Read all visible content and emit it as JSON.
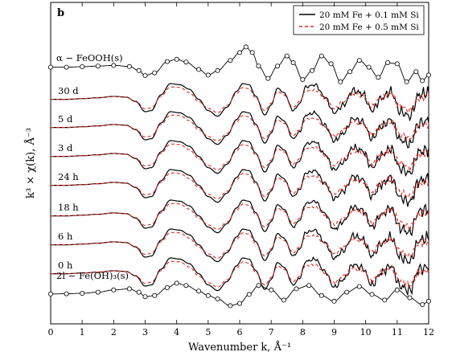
{
  "chart_data": {
    "type": "line",
    "panel_label": "b",
    "xlabel": "Wavenumber k, Å⁻¹",
    "ylabel": "k³ × χ(k), Å⁻³",
    "xlim": [
      0,
      12
    ],
    "xticks": [
      0,
      1,
      2,
      3,
      4,
      5,
      6,
      7,
      8,
      9,
      10,
      11,
      12
    ],
    "grid": false,
    "legend": {
      "position": "top-right",
      "entries": [
        {
          "label": "20 mM Fe + 0.1 mM Si",
          "color": "#000000",
          "dash": "solid"
        },
        {
          "label": "20 mM Fe + 0.5 mM Si",
          "color": "#e8231c",
          "dash": "dashed"
        }
      ]
    },
    "reference_spectra": [
      {
        "label": "α − FeOOH(s)",
        "x": [
          0,
          0.5,
          1,
          1.5,
          2,
          2.5,
          2.8,
          3.0,
          3.3,
          3.7,
          4.0,
          4.3,
          4.7,
          5.0,
          5.3,
          5.7,
          6.0,
          6.2,
          6.4,
          6.6,
          6.9,
          7.2,
          7.5,
          7.7,
          8.0,
          8.3,
          8.6,
          8.9,
          9.2,
          9.5,
          9.8,
          10.1,
          10.4,
          10.7,
          11.0,
          11.3,
          11.6,
          11.8,
          12.0
        ],
        "y": [
          0.05,
          0.05,
          0.07,
          0.1,
          0.13,
          0.08,
          -0.1,
          -0.32,
          -0.2,
          0.3,
          0.4,
          0.28,
          -0.05,
          -0.3,
          -0.1,
          0.35,
          0.7,
          0.95,
          0.7,
          0.1,
          -0.45,
          0.1,
          0.55,
          0.25,
          -0.5,
          -0.1,
          0.55,
          0.2,
          -0.6,
          -0.15,
          0.35,
          0.05,
          -0.4,
          0.25,
          0.2,
          -0.6,
          -0.15,
          -0.55,
          -0.3
        ]
      },
      {
        "label": "2l − Fe(OH)₃(s)",
        "x": [
          0,
          0.5,
          1,
          1.5,
          2,
          2.5,
          2.8,
          3.0,
          3.3,
          3.7,
          4.0,
          4.3,
          4.7,
          5.0,
          5.3,
          5.7,
          6.0,
          6.3,
          6.6,
          7.0,
          7.4,
          7.8,
          8.2,
          8.6,
          9.0,
          9.4,
          9.8,
          10.2,
          10.6,
          11.0,
          11.4,
          11.8,
          12.0
        ],
        "y": [
          -0.03,
          -0.02,
          0,
          0.05,
          0.15,
          0.2,
          0.05,
          -0.15,
          -0.1,
          0.25,
          0.45,
          0.35,
          0.1,
          -0.1,
          -0.25,
          -0.55,
          -0.45,
          -0.05,
          0.35,
          0.15,
          -0.3,
          0.2,
          0.35,
          -0.1,
          -0.35,
          0.05,
          0.3,
          -0.05,
          -0.3,
          0.15,
          -0.2,
          -0.5,
          -0.35
        ]
      }
    ],
    "sample_series": [
      {
        "label": "30 d",
        "amplitude": 1.0,
        "seed": 3
      },
      {
        "label": "5 d",
        "amplitude": 1.0,
        "seed": 5
      },
      {
        "label": "3 d",
        "amplitude": 1.0,
        "seed": 7
      },
      {
        "label": "24 h",
        "amplitude": 1.0,
        "seed": 11
      },
      {
        "label": "18 h",
        "amplitude": 1.0,
        "seed": 13
      },
      {
        "label": "6 h",
        "amplitude": 1.0,
        "seed": 17
      },
      {
        "label": "0 h",
        "amplitude": 1.0,
        "seed": 19
      }
    ],
    "sample_template": {
      "x": [
        0,
        0.5,
        1,
        1.5,
        2,
        2.4,
        2.7,
        3.0,
        3.2,
        3.5,
        3.8,
        4.1,
        4.4,
        4.7,
        5.0,
        5.3,
        5.6,
        5.9,
        6.1,
        6.3,
        6.5,
        6.8,
        7.0,
        7.2,
        7.4,
        7.7,
        7.9,
        8.1,
        8.4,
        8.7,
        9.0,
        9.3,
        9.6,
        9.9,
        10.2,
        10.5,
        10.8,
        11.1,
        11.4,
        11.7,
        12.0
      ],
      "y_0.1Si": [
        0.05,
        0.05,
        0.08,
        0.12,
        0.18,
        0.15,
        -0.05,
        -0.5,
        -0.45,
        0.25,
        0.75,
        0.7,
        0.5,
        0.05,
        -0.45,
        -0.7,
        -0.3,
        0.4,
        0.75,
        0.7,
        0.2,
        -0.65,
        -0.2,
        0.55,
        0.35,
        -0.45,
        -0.15,
        0.6,
        0.7,
        0.15,
        -0.55,
        -0.2,
        0.45,
        0.3,
        -0.45,
        0.1,
        0.4,
        -0.5,
        -0.7,
        0.25,
        0.35
      ],
      "y_0.5Si": [
        0.05,
        0.05,
        0.08,
        0.12,
        0.18,
        0.14,
        -0.03,
        -0.38,
        -0.33,
        0.18,
        0.6,
        0.58,
        0.35,
        -0.05,
        -0.35,
        -0.55,
        -0.22,
        0.3,
        0.58,
        0.52,
        0.12,
        -0.45,
        -0.12,
        0.4,
        0.25,
        -0.3,
        -0.05,
        0.42,
        0.45,
        0.1,
        -0.35,
        -0.05,
        0.3,
        0.22,
        -0.28,
        0.12,
        0.32,
        -0.25,
        -0.45,
        0.12,
        0.2
      ]
    }
  }
}
